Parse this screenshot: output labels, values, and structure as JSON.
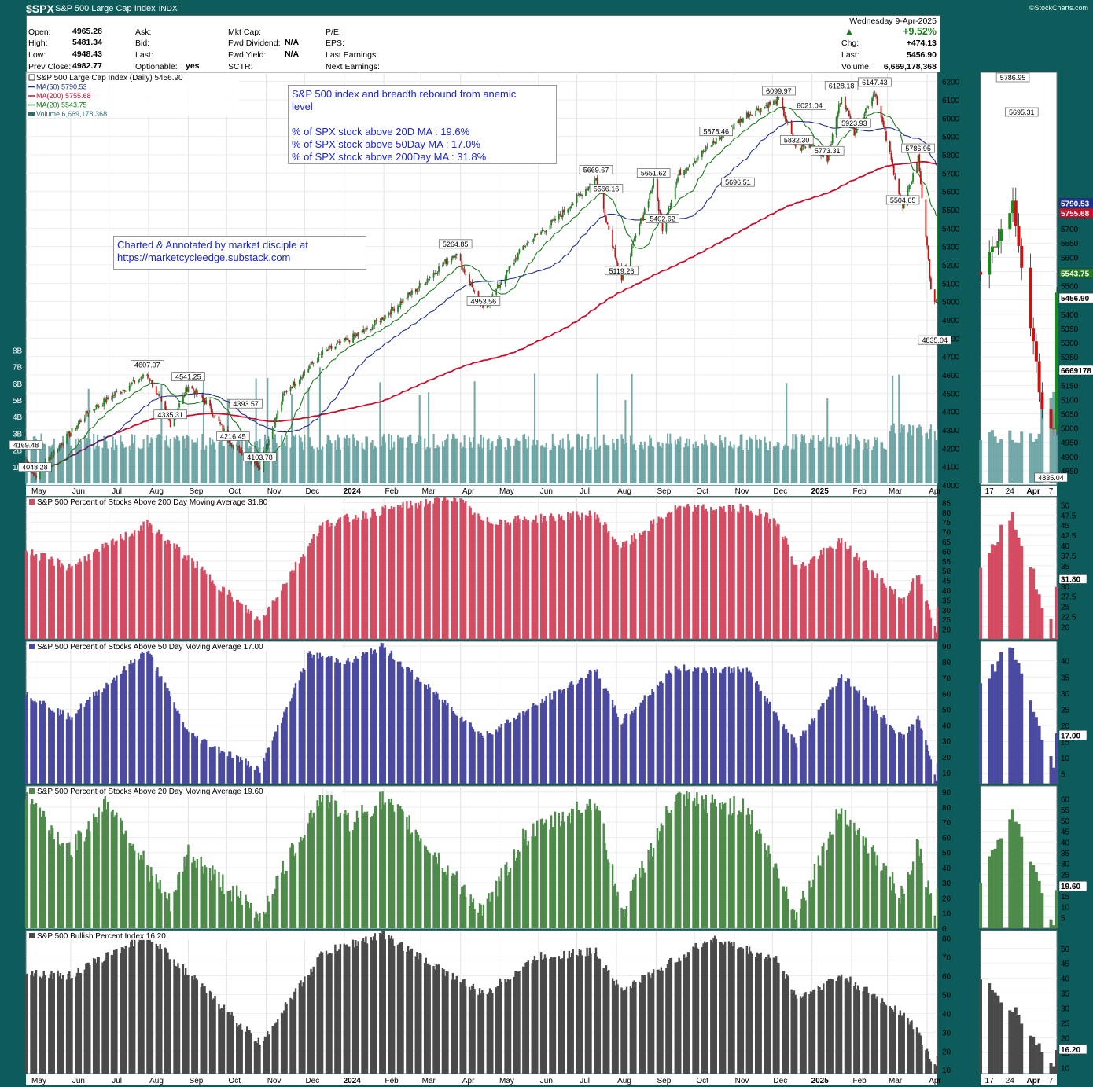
{
  "header": {
    "symbol": "$SPX",
    "name": "S&P 500 Large Cap Index",
    "exchange": "INDX",
    "credit": "©StockCharts.com"
  },
  "quote": {
    "open_label": "Open:",
    "open": "4965.28",
    "high_label": "High:",
    "high": "5481.34",
    "low_label": "Low:",
    "low": "4948.43",
    "prev_label": "Prev Close:",
    "prev": "4982.77",
    "ask_label": "Ask:",
    "bid_label": "Bid:",
    "last_label": "Last:",
    "optionable_label": "Optionable:",
    "optionable": "yes",
    "mktcap_label": "Mkt Cap:",
    "fwddiv_label": "Fwd Dividend:",
    "fwddiv": "N/A",
    "fwdyield_label": "Fwd Yield:",
    "fwdyield": "N/A",
    "sctr_label": "SCTR:",
    "pe_label": "P/E:",
    "eps_label": "EPS:",
    "lastearn_label": "Last Earnings:",
    "nextearn_label": "Next Earnings:",
    "date": "Wednesday  9-Apr-2025",
    "pct": "+9.52%",
    "chg_label": "Chg:",
    "chg": "+474.13",
    "last_label2": "Last:",
    "last": "5456.90",
    "vol_label": "Volume:",
    "volume": "6,669,178,368"
  },
  "annotations": {
    "breadth_box": [
      "S&P 500 index and breadth rebound from anemic",
      "level",
      "",
      "% of SPX stock above 20D MA : 19.6%",
      "% of SPX stock above 50Day MA :  17.0%",
      "% of SPX stock above 200Day MA : 31.8%"
    ],
    "credit_box": [
      "Charted & Annotated by market disciple at",
      "https://marketcycleedge.substack.com"
    ]
  },
  "legend_main": [
    {
      "text": "S&P 500 Large Cap Index (Daily) 5456.90",
      "color": "#000000"
    },
    {
      "text": "MA(50) 5790.53",
      "color": "#1f2f8f"
    },
    {
      "text": "MA(200) 5755.68",
      "color": "#c8102e"
    },
    {
      "text": "MA(20) 5543.75",
      "color": "#1d7a1d"
    },
    {
      "text": "Volume 6,669,178,368",
      "color": "#2e6e6e"
    }
  ],
  "panel_titles": {
    "p200": "S&P 500 Percent of Stocks Above 200 Day Moving Average 31.80",
    "p50": "S&P 500 Percent of Stocks Above 50 Day Moving Average 17.00",
    "p20": "S&P 500 Percent of Stocks Above 20 Day Moving Average 19.60",
    "bpi": "S&P 500 Bullish Percent Index 16.20"
  },
  "x_labels": [
    "May",
    "Jun",
    "Jul",
    "Aug",
    "Sep",
    "Oct",
    "Nov",
    "Dec",
    "2024",
    "Feb",
    "Mar",
    "Apr",
    "May",
    "Jun",
    "Jul",
    "Aug",
    "Sep",
    "Oct",
    "Nov",
    "Dec",
    "2025",
    "Feb",
    "Mar",
    "Apr"
  ],
  "zoom_x_labels": [
    "17",
    "24",
    "Apr",
    "7"
  ],
  "last_values": {
    "price": "5456.90",
    "ma50": "5790.53",
    "ma200": "5755.68",
    "ma20": "5543.75",
    "volume": "6669178",
    "p200": "31.80",
    "p50": "17.00",
    "p20": "19.60",
    "bpi": "16.20"
  },
  "chart_data": [
    {
      "type": "line",
      "title": "S&P 500 Large Cap Index (Daily) 5456.90",
      "x_range": [
        "2023-04-27",
        "2025-04-09"
      ],
      "ylim": [
        4000,
        6250
      ],
      "yticks": [
        4000,
        4100,
        4200,
        4300,
        4400,
        4500,
        4600,
        4700,
        4800,
        4900,
        5000,
        5100,
        5200,
        5300,
        5400,
        5500,
        5600,
        5700,
        5800,
        5900,
        6000,
        6100,
        6200
      ],
      "volume_ticks": [
        "1B",
        "2B",
        "3B",
        "4B",
        "5B",
        "6B",
        "7B",
        "8B"
      ],
      "price_x": [
        "2023-04-27",
        "2023-05-04",
        "2023-05-20",
        "2023-06-15",
        "2023-07-31",
        "2023-08-18",
        "2023-09-01",
        "2023-09-15",
        "2023-10-06",
        "2023-10-27",
        "2023-11-15",
        "2023-12-15",
        "2024-01-20",
        "2024-02-20",
        "2024-03-28",
        "2024-04-19",
        "2024-05-20",
        "2024-06-15",
        "2024-07-16",
        "2024-08-05",
        "2024-08-30",
        "2024-09-06",
        "2024-09-19",
        "2024-10-18",
        "2024-11-11",
        "2024-12-06",
        "2024-12-20",
        "2025-01-02",
        "2025-01-13",
        "2025-01-24",
        "2025-02-03",
        "2025-02-19",
        "2025-03-13",
        "2025-03-25",
        "2025-04-04",
        "2025-04-08",
        "2025-04-09"
      ],
      "price_y": [
        4135,
        4048.28,
        4190,
        4400,
        4607.07,
        4335.31,
        4541.25,
        4450,
        4216.45,
        4103.78,
        4500,
        4720,
        4850,
        5030,
        5264.85,
        4953.56,
        5300,
        5450,
        5669.67,
        5119.26,
        5651.62,
        5402.62,
        5700,
        5878.46,
        6020,
        6099.97,
        5832.3,
        5860,
        5773.31,
        6128.18,
        5923.93,
        6147.43,
        5504.65,
        5786.95,
        5074,
        4982.77,
        5456.9
      ],
      "ma20_last": 5543.75,
      "ma50_last": 5790.53,
      "ma200_last": 5755.68,
      "volume_last": 6669178368,
      "labels": [
        {
          "x": "2023-05-04",
          "y": 4048.28,
          "text": "4048.28"
        },
        {
          "x": "2023-04-27",
          "y": 4169.48,
          "text": "4169.48"
        },
        {
          "x": "2023-07-31",
          "y": 4607.07,
          "text": "4607.07"
        },
        {
          "x": "2023-08-18",
          "y": 4335.31,
          "text": "4335.31"
        },
        {
          "x": "2023-09-01",
          "y": 4541.25,
          "text": "4541.25"
        },
        {
          "x": "2023-10-06",
          "y": 4216.45,
          "text": "4216.45"
        },
        {
          "x": "2023-10-16",
          "y": 4393.57,
          "text": "4393.57"
        },
        {
          "x": "2023-10-27",
          "y": 4103.78,
          "text": "4103.78"
        },
        {
          "x": "2024-03-28",
          "y": 5264.85,
          "text": "5264.85"
        },
        {
          "x": "2024-04-19",
          "y": 4953.56,
          "text": "4953.56"
        },
        {
          "x": "2024-07-16",
          "y": 5669.67,
          "text": "5669.67"
        },
        {
          "x": "2024-07-24",
          "y": 5566.16,
          "text": "5566.16"
        },
        {
          "x": "2024-08-05",
          "y": 5119.26,
          "text": "5119.26"
        },
        {
          "x": "2024-08-30",
          "y": 5651.62,
          "text": "5651.62"
        },
        {
          "x": "2024-09-06",
          "y": 5402.62,
          "text": "5402.62"
        },
        {
          "x": "2024-10-18",
          "y": 5878.46,
          "text": "5878.46"
        },
        {
          "x": "2024-11-04",
          "y": 5696.51,
          "text": "5696.51"
        },
        {
          "x": "2024-12-06",
          "y": 6099.97,
          "text": "6099.97"
        },
        {
          "x": "2024-12-20",
          "y": 5832.3,
          "text": "5832.30"
        },
        {
          "x": "2024-12-30",
          "y": 6021.04,
          "text": "6021.04"
        },
        {
          "x": "2025-01-13",
          "y": 5773.31,
          "text": "5773.31"
        },
        {
          "x": "2025-01-24",
          "y": 6128.18,
          "text": "6128.18"
        },
        {
          "x": "2025-02-03",
          "y": 5923.93,
          "text": "5923.93"
        },
        {
          "x": "2025-02-19",
          "y": 6147.43,
          "text": "6147.43"
        },
        {
          "x": "2025-03-13",
          "y": 5504.65,
          "text": "5504.65"
        },
        {
          "x": "2025-03-25",
          "y": 5786.95,
          "text": "5786.95"
        },
        {
          "x": "2025-04-07",
          "y": 4835.04,
          "text": "4835.04"
        }
      ],
      "zoom_ylim": [
        4800,
        6250
      ],
      "zoom_yticks": [
        4850,
        4900,
        4950,
        5000,
        5050,
        5100,
        5150,
        5200,
        5250,
        5300,
        5350,
        5400,
        5450,
        5500,
        5550,
        5600,
        5650,
        5700,
        5750
      ],
      "zoom_labels": [
        {
          "x": "2025-03-25",
          "text": "5786.95"
        },
        {
          "x": "2025-03-28",
          "text": "5695.31"
        },
        {
          "x": "2025-04-07",
          "text": "4835.04"
        }
      ]
    },
    {
      "type": "area",
      "title": "S&P 500 Percent of Stocks Above 200 Day Moving Average 31.80",
      "color": "#d44c62",
      "ylim": [
        15,
        88
      ],
      "yticks": [
        20,
        25,
        30,
        35,
        40,
        45,
        50,
        55,
        60,
        65,
        70,
        75,
        80,
        85
      ],
      "x": [
        "2023-04-27",
        "2023-05-31",
        "2023-07-31",
        "2023-08-31",
        "2023-10-27",
        "2023-12-15",
        "2024-01-31",
        "2024-03-28",
        "2024-04-19",
        "2024-07-16",
        "2024-08-05",
        "2024-09-15",
        "2024-11-11",
        "2024-12-06",
        "2024-12-20",
        "2025-01-24",
        "2025-03-13",
        "2025-03-25",
        "2025-04-08",
        "2025-04-09"
      ],
      "y": [
        60,
        52,
        74,
        57,
        24,
        74,
        81,
        88,
        75,
        79,
        62,
        82,
        82,
        75,
        51,
        65,
        35,
        48,
        18,
        31.8
      ],
      "zoom_ylim": [
        17,
        52
      ],
      "zoom_yticks": [
        20,
        22.5,
        25,
        27.5,
        30,
        32.5,
        35,
        37.5,
        40,
        42.5,
        45,
        47.5,
        50
      ]
    },
    {
      "type": "area",
      "title": "S&P 500 Percent of Stocks Above 50 Day Moving Average 17.00",
      "color": "#4a4aa0",
      "ylim": [
        3,
        93
      ],
      "yticks": [
        10,
        20,
        30,
        40,
        50,
        60,
        70,
        80,
        90
      ],
      "x": [
        "2023-04-27",
        "2023-05-31",
        "2023-07-31",
        "2023-09-01",
        "2023-10-27",
        "2023-12-05",
        "2024-01-05",
        "2024-01-31",
        "2024-02-20",
        "2024-04-19",
        "2024-07-16",
        "2024-08-05",
        "2024-09-15",
        "2024-11-11",
        "2024-12-20",
        "2025-01-24",
        "2025-03-13",
        "2025-03-25",
        "2025-04-08",
        "2025-04-09"
      ],
      "y": [
        60,
        45,
        88,
        35,
        12,
        85,
        80,
        90,
        75,
        33,
        75,
        42,
        76,
        75,
        28,
        72,
        32,
        45,
        6,
        17
      ],
      "zoom_ylim": [
        2,
        46
      ],
      "zoom_yticks": [
        5,
        10,
        15,
        20,
        25,
        30,
        35,
        40
      ]
    },
    {
      "type": "area",
      "title": "S&P 500 Percent of Stocks Above 20 Day Moving Average 19.60",
      "color": "#4e8a4a",
      "ylim": [
        0,
        94
      ],
      "yticks": [
        0,
        10,
        20,
        30,
        40,
        50,
        60,
        70,
        80,
        90
      ],
      "x": [
        "2023-04-27",
        "2023-05-31",
        "2023-06-30",
        "2023-08-18",
        "2023-09-01",
        "2023-10-27",
        "2023-12-15",
        "2024-01-05",
        "2024-01-31",
        "2024-02-20",
        "2024-04-19",
        "2024-05-20",
        "2024-07-16",
        "2024-08-05",
        "2024-09-15",
        "2024-11-11",
        "2024-12-20",
        "2025-01-24",
        "2025-03-13",
        "2025-03-25",
        "2025-04-08",
        "2025-04-09"
      ],
      "y": [
        90,
        50,
        85,
        15,
        50,
        8,
        90,
        70,
        85,
        70,
        10,
        60,
        85,
        10,
        85,
        80,
        10,
        80,
        20,
        55,
        2,
        19.6
      ],
      "zoom_ylim": [
        0,
        66
      ],
      "zoom_yticks": [
        5,
        10,
        15,
        20,
        25,
        30,
        35,
        40,
        45,
        50,
        55,
        60
      ]
    },
    {
      "type": "area",
      "title": "S&P 500 Bullish Percent Index 16.20",
      "color": "#4a4a4a",
      "ylim": [
        8,
        84
      ],
      "yticks": [
        10,
        20,
        30,
        40,
        50,
        60,
        70,
        80
      ],
      "x": [
        "2023-04-27",
        "2023-05-31",
        "2023-07-31",
        "2023-09-15",
        "2023-10-27",
        "2023-12-15",
        "2024-01-31",
        "2024-04-19",
        "2024-05-31",
        "2024-07-16",
        "2024-08-05",
        "2024-10-15",
        "2024-12-06",
        "2024-12-20",
        "2025-01-24",
        "2025-03-13",
        "2025-03-25",
        "2025-04-08",
        "2025-04-09"
      ],
      "y": [
        62,
        60,
        82,
        52,
        24,
        72,
        82,
        50,
        70,
        73,
        52,
        80,
        68,
        48,
        60,
        40,
        30,
        10,
        16.2
      ],
      "zoom_ylim": [
        8,
        56
      ],
      "zoom_yticks": [
        10,
        15,
        20,
        25,
        30,
        35,
        40,
        45,
        50
      ]
    }
  ]
}
